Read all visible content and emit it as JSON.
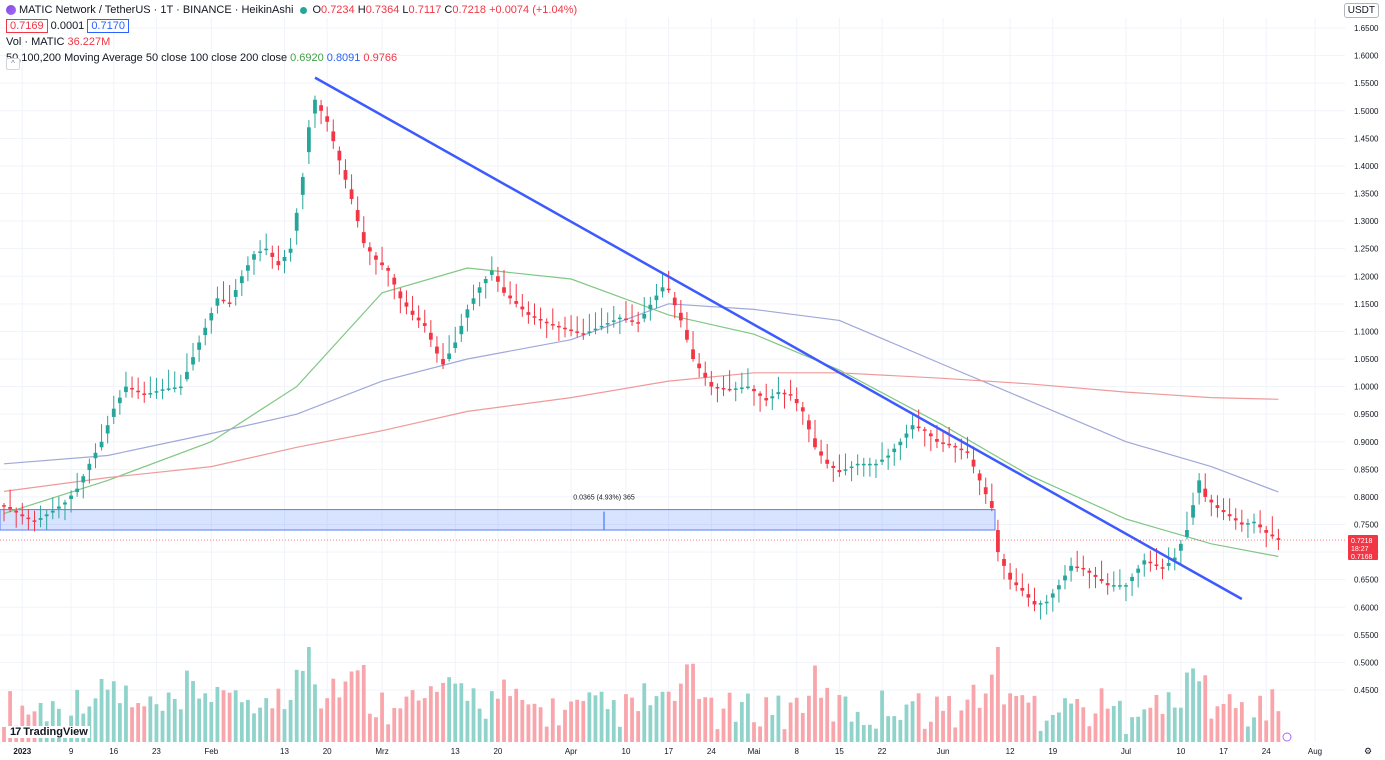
{
  "legend": {
    "symbol_title": "MATIC Network / TetherUS · 1T · BINANCE · HeikinAshi",
    "o_key": "O",
    "o_val": "0.7234",
    "h_key": "H",
    "h_val": "0.7364",
    "l_key": "L",
    "l_val": "0.7117",
    "c_key": "C",
    "c_val": "0.7218",
    "change": "+0.0074 (+1.04%)",
    "bid": "0.7169",
    "spread": "0.0001",
    "ask": "0.7170",
    "vol_label": "Vol · MATIC",
    "vol_value": "36.227M",
    "ma_label": "50,100,200 Moving Average 50 close 100 close 200 close",
    "ma50": "0.6920",
    "ma100": "0.8091",
    "ma200": "0.9766",
    "collapse": "^"
  },
  "currency_button": "USDT",
  "branding": "TradingView",
  "measure_label": "0.0365 (4.93%) 365",
  "price_tag": {
    "last": "0.7218",
    "countdown": "18:27",
    "bid": "0.7168"
  },
  "colors": {
    "up": "#26a69a",
    "down": "#f23645",
    "trendline": "#3d5afe",
    "ma50": "#81c784",
    "ma100": "#9fa8da",
    "ma200": "#ef9a9a"
  },
  "chart_data": {
    "type": "candlestick",
    "scale": "linear",
    "ylim": [
      0.425,
      1.665
    ],
    "y_ticks": [
      "1.6500",
      "1.6000",
      "1.5500",
      "1.5000",
      "1.4500",
      "1.4000",
      "1.3500",
      "1.3000",
      "1.2500",
      "1.2000",
      "1.1500",
      "1.1000",
      "1.0500",
      "1.0000",
      "0.9500",
      "0.9000",
      "0.8500",
      "0.8000",
      "0.7500",
      "0.7000",
      "0.6500",
      "0.6000",
      "0.5500",
      "0.5000",
      "0.4500"
    ],
    "x_ticks": [
      {
        "label": "2023",
        "date": "2023-01-01",
        "bold": true
      },
      {
        "label": "9",
        "date": "2023-01-09"
      },
      {
        "label": "16",
        "date": "2023-01-16"
      },
      {
        "label": "23",
        "date": "2023-01-23"
      },
      {
        "label": "Feb",
        "date": "2023-02-01"
      },
      {
        "label": "13",
        "date": "2023-02-13"
      },
      {
        "label": "20",
        "date": "2023-02-20"
      },
      {
        "label": "Mrz",
        "date": "2023-03-01"
      },
      {
        "label": "13",
        "date": "2023-03-13"
      },
      {
        "label": "20",
        "date": "2023-03-20"
      },
      {
        "label": "Apr",
        "date": "2023-04-01"
      },
      {
        "label": "10",
        "date": "2023-04-10"
      },
      {
        "label": "17",
        "date": "2023-04-17"
      },
      {
        "label": "24",
        "date": "2023-04-24"
      },
      {
        "label": "Mai",
        "date": "2023-05-01"
      },
      {
        "label": "8",
        "date": "2023-05-08"
      },
      {
        "label": "15",
        "date": "2023-05-15"
      },
      {
        "label": "22",
        "date": "2023-05-22"
      },
      {
        "label": "Jun",
        "date": "2023-06-01"
      },
      {
        "label": "12",
        "date": "2023-06-12"
      },
      {
        "label": "19",
        "date": "2023-06-19"
      },
      {
        "label": "Jul",
        "date": "2023-07-01"
      },
      {
        "label": "10",
        "date": "2023-07-10"
      },
      {
        "label": "17",
        "date": "2023-07-17"
      },
      {
        "label": "24",
        "date": "2023-07-24"
      },
      {
        "label": "Aug",
        "date": "2023-08-01"
      }
    ],
    "closes": [
      [
        "2022-12-29",
        0.785
      ],
      [
        "2023-01-01",
        0.765
      ],
      [
        "2023-01-03",
        0.755
      ],
      [
        "2023-01-06",
        0.775
      ],
      [
        "2023-01-08",
        0.79
      ],
      [
        "2023-01-10",
        0.815
      ],
      [
        "2023-01-12",
        0.86
      ],
      [
        "2023-01-14",
        0.9
      ],
      [
        "2023-01-16",
        0.96
      ],
      [
        "2023-01-18",
        1.0
      ],
      [
        "2023-01-21",
        0.985
      ],
      [
        "2023-01-24",
        0.995
      ],
      [
        "2023-01-27",
        1.0
      ],
      [
        "2023-01-30",
        1.08
      ],
      [
        "2023-02-02",
        1.16
      ],
      [
        "2023-02-04",
        1.15
      ],
      [
        "2023-02-06",
        1.2
      ],
      [
        "2023-02-08",
        1.24
      ],
      [
        "2023-02-10",
        1.25
      ],
      [
        "2023-02-12",
        1.22
      ],
      [
        "2023-02-14",
        1.25
      ],
      [
        "2023-02-16",
        1.38
      ],
      [
        "2023-02-17",
        1.47
      ],
      [
        "2023-02-18",
        1.52
      ],
      [
        "2023-02-20",
        1.48
      ],
      [
        "2023-02-22",
        1.41
      ],
      [
        "2023-02-24",
        1.34
      ],
      [
        "2023-02-26",
        1.26
      ],
      [
        "2023-02-28",
        1.23
      ],
      [
        "2023-03-02",
        1.21
      ],
      [
        "2023-03-04",
        1.16
      ],
      [
        "2023-03-06",
        1.13
      ],
      [
        "2023-03-08",
        1.11
      ],
      [
        "2023-03-10",
        1.06
      ],
      [
        "2023-03-11",
        1.04
      ],
      [
        "2023-03-13",
        1.08
      ],
      [
        "2023-03-15",
        1.14
      ],
      [
        "2023-03-17",
        1.18
      ],
      [
        "2023-03-19",
        1.21
      ],
      [
        "2023-03-21",
        1.17
      ],
      [
        "2023-03-23",
        1.15
      ],
      [
        "2023-03-25",
        1.13
      ],
      [
        "2023-03-28",
        1.115
      ],
      [
        "2023-03-31",
        1.105
      ],
      [
        "2023-04-03",
        1.095
      ],
      [
        "2023-04-06",
        1.11
      ],
      [
        "2023-04-09",
        1.125
      ],
      [
        "2023-04-12",
        1.115
      ],
      [
        "2023-04-15",
        1.165
      ],
      [
        "2023-04-16",
        1.18
      ],
      [
        "2023-04-17",
        1.175
      ],
      [
        "2023-04-19",
        1.12
      ],
      [
        "2023-04-21",
        1.05
      ],
      [
        "2023-04-24",
        1.0
      ],
      [
        "2023-04-27",
        0.995
      ],
      [
        "2023-04-30",
        1.0
      ],
      [
        "2023-05-03",
        0.975
      ],
      [
        "2023-05-05",
        0.99
      ],
      [
        "2023-05-07",
        0.985
      ],
      [
        "2023-05-09",
        0.955
      ],
      [
        "2023-05-11",
        0.89
      ],
      [
        "2023-05-13",
        0.86
      ],
      [
        "2023-05-15",
        0.845
      ],
      [
        "2023-05-18",
        0.86
      ],
      [
        "2023-05-21",
        0.86
      ],
      [
        "2023-05-23",
        0.875
      ],
      [
        "2023-05-25",
        0.9
      ],
      [
        "2023-05-27",
        0.93
      ],
      [
        "2023-05-29",
        0.92
      ],
      [
        "2023-05-31",
        0.9
      ],
      [
        "2023-06-02",
        0.895
      ],
      [
        "2023-06-05",
        0.88
      ],
      [
        "2023-06-07",
        0.83
      ],
      [
        "2023-06-09",
        0.78
      ],
      [
        "2023-06-10",
        0.7
      ],
      [
        "2023-06-12",
        0.65
      ],
      [
        "2023-06-14",
        0.63
      ],
      [
        "2023-06-16",
        0.605
      ],
      [
        "2023-06-18",
        0.61
      ],
      [
        "2023-06-20",
        0.64
      ],
      [
        "2023-06-22",
        0.675
      ],
      [
        "2023-06-24",
        0.67
      ],
      [
        "2023-06-26",
        0.655
      ],
      [
        "2023-06-28",
        0.64
      ],
      [
        "2023-07-01",
        0.64
      ],
      [
        "2023-07-04",
        0.685
      ],
      [
        "2023-07-07",
        0.67
      ],
      [
        "2023-07-09",
        0.69
      ],
      [
        "2023-07-11",
        0.74
      ],
      [
        "2023-07-13",
        0.83
      ],
      [
        "2023-07-14",
        0.8
      ],
      [
        "2023-07-16",
        0.78
      ],
      [
        "2023-07-18",
        0.765
      ],
      [
        "2023-07-20",
        0.75
      ],
      [
        "2023-07-22",
        0.755
      ],
      [
        "2023-07-24",
        0.735
      ],
      [
        "2023-07-26",
        0.722
      ]
    ],
    "volume_bars": {
      "description_free": true
    },
    "moving_averages": [
      {
        "label": "50 close",
        "value": "0.6920",
        "points": [
          [
            "2022-12-29",
            0.77
          ],
          [
            "2023-01-15",
            0.83
          ],
          [
            "2023-02-01",
            0.9
          ],
          [
            "2023-02-15",
            1.0
          ],
          [
            "2023-03-01",
            1.17
          ],
          [
            "2023-03-15",
            1.215
          ],
          [
            "2023-04-01",
            1.195
          ],
          [
            "2023-04-17",
            1.13
          ],
          [
            "2023-05-01",
            1.095
          ],
          [
            "2023-05-15",
            1.03
          ],
          [
            "2023-06-01",
            0.93
          ],
          [
            "2023-06-15",
            0.84
          ],
          [
            "2023-07-01",
            0.76
          ],
          [
            "2023-07-15",
            0.715
          ],
          [
            "2023-07-26",
            0.692
          ]
        ]
      },
      {
        "label": "100 close",
        "value": "0.8091",
        "points": [
          [
            "2022-12-29",
            0.86
          ],
          [
            "2023-01-15",
            0.875
          ],
          [
            "2023-02-01",
            0.915
          ],
          [
            "2023-02-15",
            0.95
          ],
          [
            "2023-03-01",
            1.01
          ],
          [
            "2023-03-15",
            1.05
          ],
          [
            "2023-04-01",
            1.085
          ],
          [
            "2023-04-17",
            1.15
          ],
          [
            "2023-05-01",
            1.14
          ],
          [
            "2023-05-15",
            1.12
          ],
          [
            "2023-06-01",
            1.04
          ],
          [
            "2023-06-15",
            0.975
          ],
          [
            "2023-07-01",
            0.9
          ],
          [
            "2023-07-15",
            0.855
          ],
          [
            "2023-07-26",
            0.809
          ]
        ]
      },
      {
        "label": "200 close",
        "value": "0.9766",
        "points": [
          [
            "2022-12-29",
            0.81
          ],
          [
            "2023-01-15",
            0.835
          ],
          [
            "2023-02-01",
            0.855
          ],
          [
            "2023-02-15",
            0.89
          ],
          [
            "2023-03-01",
            0.92
          ],
          [
            "2023-03-15",
            0.955
          ],
          [
            "2023-04-01",
            0.98
          ],
          [
            "2023-04-17",
            1.01
          ],
          [
            "2023-05-01",
            1.025
          ],
          [
            "2023-05-15",
            1.025
          ],
          [
            "2023-06-01",
            1.015
          ],
          [
            "2023-06-15",
            1.005
          ],
          [
            "2023-07-01",
            0.99
          ],
          [
            "2023-07-15",
            0.98
          ],
          [
            "2023-07-26",
            0.977
          ]
        ]
      }
    ],
    "trendline": [
      [
        "2023-02-18",
        1.56
      ],
      [
        "2023-07-20",
        0.615
      ]
    ],
    "range_zone": [
      0.74,
      0.777
    ],
    "current_price": 0.7218
  }
}
